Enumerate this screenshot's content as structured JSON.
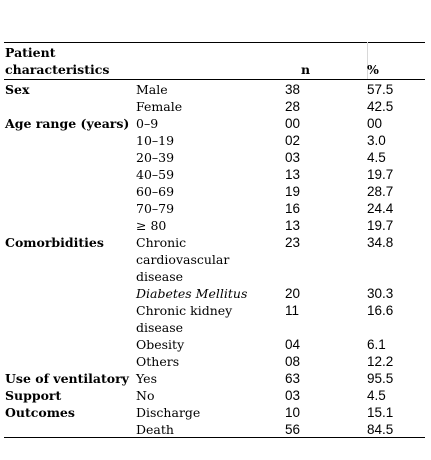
{
  "table": {
    "header": {
      "characteristics_line1": "Patient",
      "characteristics_line2": "characteristics",
      "n": "n",
      "percent": "%"
    },
    "groups": [
      {
        "label": "Sex",
        "rows": [
          {
            "category": [
              "Male"
            ],
            "n": "38",
            "pct": "57.5"
          },
          {
            "category": [
              "Female"
            ],
            "n": "28",
            "pct": "42.5"
          }
        ]
      },
      {
        "label": "Age range (years)",
        "rows": [
          {
            "category": [
              "0–9"
            ],
            "n": "00",
            "pct": "00"
          },
          {
            "category": [
              "10–19"
            ],
            "n": "02",
            "pct": "3.0"
          },
          {
            "category": [
              "20–39"
            ],
            "n": "03",
            "pct": "4.5"
          },
          {
            "category": [
              "40–59"
            ],
            "n": "13",
            "pct": "19.7"
          },
          {
            "category": [
              "60–69"
            ],
            "n": "19",
            "pct": "28.7"
          },
          {
            "category": [
              "70–79"
            ],
            "n": "16",
            "pct": "24.4"
          },
          {
            "category": [
              "≥ 80"
            ],
            "n": "13",
            "pct": "19.7"
          }
        ]
      },
      {
        "label": "Comorbidities",
        "rows": [
          {
            "category": [
              "Chronic",
              "cardiovascular",
              "disease"
            ],
            "n": "23",
            "pct": "34.8"
          },
          {
            "category": [
              "Diabetes Mellitus"
            ],
            "n": "20",
            "pct": "30.3",
            "italic": true
          },
          {
            "category": [
              "Chronic kidney",
              "disease"
            ],
            "n": "11",
            "pct": "16.6"
          },
          {
            "category": [
              "Obesity"
            ],
            "n": "04",
            "pct": "6.1"
          },
          {
            "category": [
              "Others"
            ],
            "n": "08",
            "pct": "12.2"
          }
        ]
      },
      {
        "label": "Use of ventilatory",
        "rows": [
          {
            "category": [
              "Yes"
            ],
            "n": "63",
            "pct": "95.5"
          }
        ]
      },
      {
        "label": "Support",
        "rows": [
          {
            "category": [
              "No"
            ],
            "n": "03",
            "pct": "4.5"
          }
        ]
      },
      {
        "label": "Outcomes",
        "rows": [
          {
            "category": [
              "Discharge"
            ],
            "n": "10",
            "pct": "15.1"
          },
          {
            "category": [
              "Death"
            ],
            "n": "56",
            "pct": "84.5"
          }
        ]
      }
    ]
  }
}
